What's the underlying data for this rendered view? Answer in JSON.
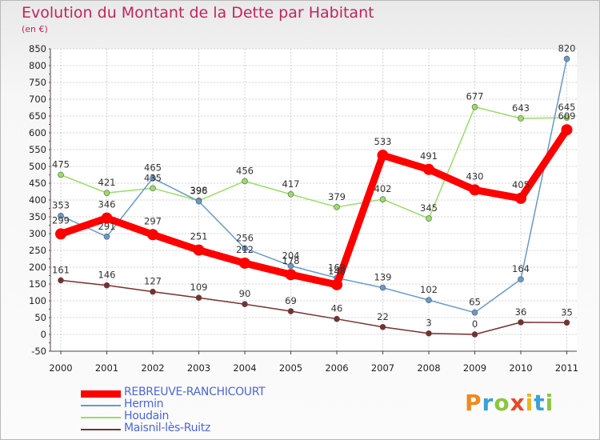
{
  "chart_data": {
    "type": "line",
    "title": "Evolution du Montant de la Dette par Habitant",
    "subtitle": "(en €)",
    "x": [
      "2000",
      "2001",
      "2002",
      "2003",
      "2004",
      "2005",
      "2006",
      "2007",
      "2008",
      "2009",
      "2010",
      "2011"
    ],
    "ylim": [
      -50,
      850
    ],
    "yticks": [
      -50,
      0,
      50,
      100,
      150,
      200,
      250,
      300,
      350,
      400,
      450,
      500,
      550,
      600,
      650,
      700,
      750,
      800,
      850
    ],
    "grid": true,
    "legend_position": "bottom-left",
    "series": [
      {
        "name": "REBREUVE-RANCHICOURT",
        "color": "#ff0000",
        "values": [
          299,
          346,
          297,
          251,
          212,
          178,
          148,
          533,
          491,
          430,
          405,
          609
        ],
        "labels": [
          "299",
          "346",
          "297",
          "251",
          "212",
          "178",
          "148",
          "533",
          "491",
          "430",
          "405",
          "609"
        ]
      },
      {
        "name": "Hermin",
        "color": "#6699cc",
        "values": [
          353,
          291,
          465,
          396,
          256,
          204,
          168,
          139,
          102,
          65,
          164,
          820
        ],
        "labels": [
          "353",
          "291",
          "465",
          "396",
          "256",
          "204",
          "168",
          "139",
          "102",
          "65",
          "164",
          "820"
        ]
      },
      {
        "name": "Houdain",
        "color": "#99dd66",
        "values": [
          475,
          421,
          435,
          398,
          456,
          417,
          379,
          402,
          345,
          677,
          643,
          645
        ],
        "labels": [
          "475",
          "421",
          "435",
          "398",
          "456",
          "417",
          "379",
          "402",
          "345",
          "677",
          "643",
          "645"
        ]
      },
      {
        "name": "Maisnil-lès-Ruitz",
        "color": "#7a2f2f",
        "values": [
          161,
          146,
          127,
          109,
          90,
          69,
          46,
          22,
          3,
          0,
          36,
          35
        ],
        "labels": [
          "161",
          "146",
          "127",
          "109",
          "90",
          "69",
          "46",
          "22",
          "3",
          "0",
          "36",
          "35"
        ]
      }
    ]
  },
  "logo": {
    "letters": [
      "P",
      "r",
      "o",
      "x",
      "i",
      "t",
      "i"
    ],
    "colors": [
      "#f08a1c",
      "#3aa0d8",
      "#8cc63f",
      "#e34b2a",
      "#f0b41c",
      "#3aa0d8",
      "#8cc63f"
    ]
  }
}
